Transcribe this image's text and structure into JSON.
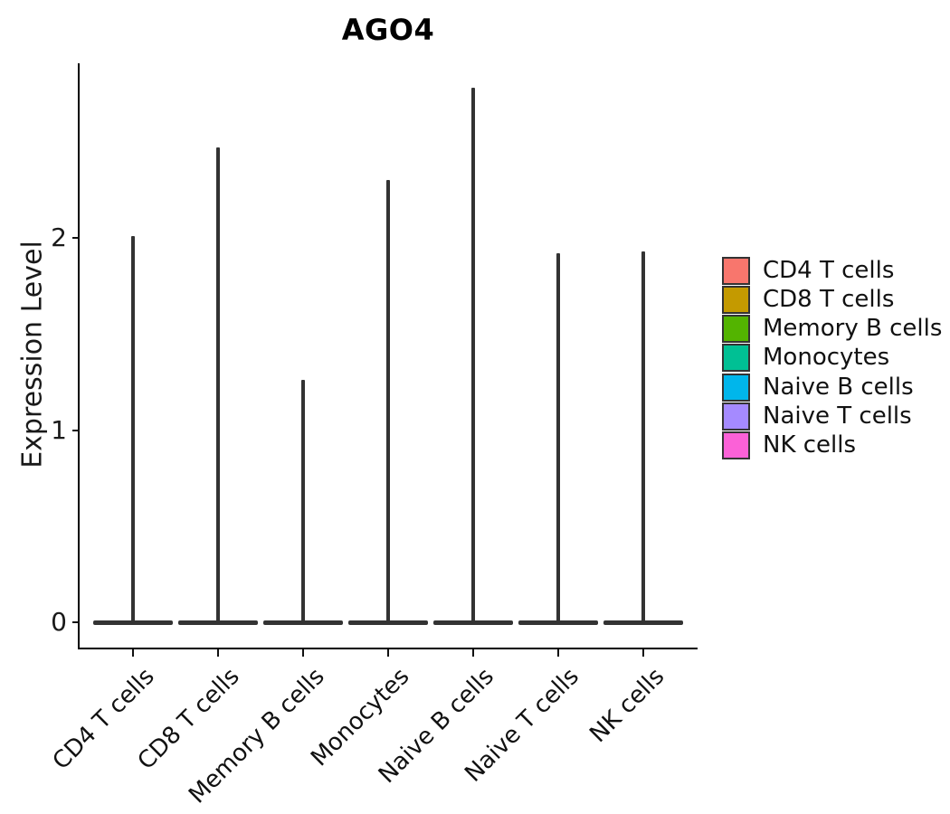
{
  "title": "AGO4",
  "y_axis": {
    "label": "Expression Level",
    "tick_labels": [
      "0",
      "1",
      "2"
    ]
  },
  "chart_data": {
    "type": "violin",
    "title": "AGO4",
    "xlabel": "",
    "ylabel": "Expression Level",
    "ylim": [
      -0.14,
      2.92
    ],
    "yticks": [
      0,
      1,
      2
    ],
    "grid": "off",
    "legend_position": "right",
    "categories": [
      "CD4 T cells",
      "CD8 T cells",
      "Memory B cells",
      "Monocytes",
      "Naive B cells",
      "Naive T cells",
      "NK cells"
    ],
    "series": [
      {
        "name": "max_expression_spike",
        "values": [
          2.01,
          2.47,
          1.26,
          2.3,
          2.78,
          1.92,
          1.93
        ]
      },
      {
        "name": "bulk_of_distribution",
        "values": [
          0,
          0,
          0,
          0,
          0,
          0,
          0
        ]
      }
    ],
    "shape_note": "each violin is an extremely flat mass at expression 0 with a single thin spike rising to the max value",
    "colors": [
      "#F8766D",
      "#C49A00",
      "#53B400",
      "#00C094",
      "#00B6EB",
      "#A58AFF",
      "#FB61D7"
    ],
    "outline_color": "#333333",
    "legend_entries": [
      "CD4 T cells",
      "CD8 T cells",
      "Memory B cells",
      "Monocytes",
      "Naive B cells",
      "Naive T cells",
      "NK cells"
    ]
  }
}
